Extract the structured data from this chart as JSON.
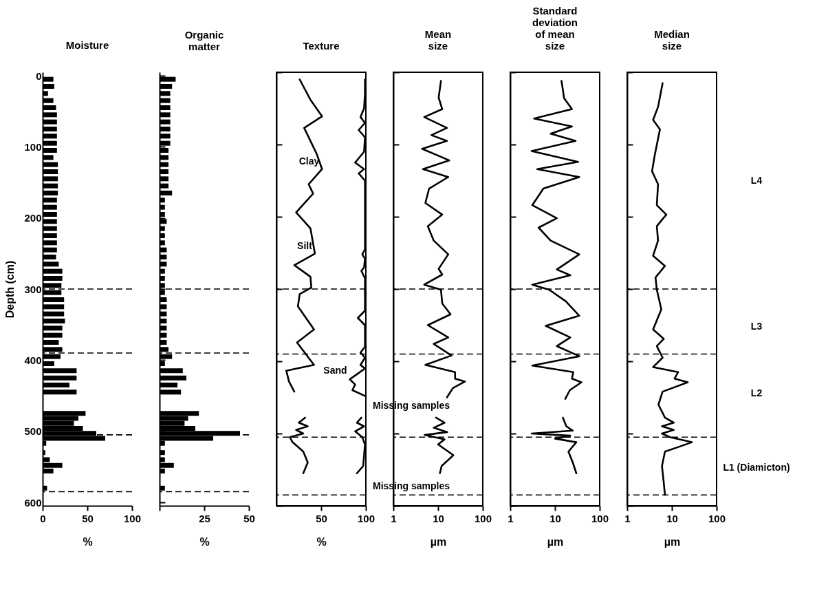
{
  "chart_data": [
    {
      "type": "bar",
      "orientation": "horizontal",
      "title": "Moisture",
      "xlabel": "%",
      "ylabel": "Depth (cm)",
      "xlim": [
        0,
        100
      ],
      "xticks": [
        0,
        50,
        100
      ],
      "ylim": [
        600,
        0
      ],
      "yticks": [
        0,
        100,
        200,
        300,
        400,
        500,
        600
      ],
      "x": [
        5,
        15,
        25,
        35,
        45,
        55,
        65,
        75,
        85,
        95,
        105,
        115,
        125,
        135,
        145,
        155,
        165,
        175,
        185,
        195,
        205,
        215,
        225,
        235,
        245,
        255,
        265,
        275,
        285,
        295,
        305,
        315,
        325,
        335,
        345,
        355,
        365,
        375,
        385,
        395,
        405,
        415,
        425,
        435,
        445,
        475,
        482,
        489,
        496,
        503,
        510,
        517,
        530,
        540,
        548,
        556,
        580
      ],
      "series": [
        {
          "color": "#000000",
          "values": [
            12,
            13,
            6,
            12,
            15,
            16,
            16,
            16,
            16,
            16,
            16,
            12,
            17,
            17,
            17,
            17,
            17,
            16,
            16,
            16,
            16,
            16,
            16,
            16,
            16,
            15,
            18,
            22,
            22,
            21,
            21,
            24,
            24,
            24,
            25,
            22,
            22,
            18,
            22,
            20,
            13,
            38,
            38,
            30,
            38,
            48,
            40,
            35,
            45,
            60,
            70,
            4,
            3,
            8,
            22,
            12,
            5
          ]
        }
      ],
      "ref_lines": [
        {
          "axis": "y",
          "value": 300,
          "line_style": "dashed"
        },
        {
          "axis": "y",
          "value": 390,
          "line_style": "dashed"
        },
        {
          "axis": "y",
          "value": 505,
          "line_style": "dashed"
        },
        {
          "axis": "y",
          "value": 585,
          "line_style": "dashed"
        }
      ]
    },
    {
      "type": "bar",
      "orientation": "horizontal",
      "title": "Organic matter",
      "xlabel": "%",
      "xlim": [
        0,
        50
      ],
      "xticks": [
        {
          "value": 0,
          "label": null
        },
        25,
        50
      ],
      "ylim": [
        600,
        0
      ],
      "yticks": [
        0,
        100,
        200,
        300,
        400,
        500,
        600
      ],
      "tick_labels": "x",
      "x": [
        5,
        15,
        25,
        35,
        45,
        55,
        65,
        75,
        85,
        95,
        105,
        115,
        125,
        135,
        145,
        155,
        165,
        175,
        185,
        195,
        205,
        215,
        225,
        235,
        245,
        255,
        265,
        275,
        285,
        295,
        305,
        315,
        325,
        335,
        345,
        355,
        365,
        375,
        385,
        395,
        405,
        415,
        425,
        435,
        445,
        475,
        482,
        489,
        496,
        503,
        510,
        517,
        530,
        540,
        548,
        556,
        580
      ],
      "series": [
        {
          "color": "#000000",
          "values": [
            9,
            7,
            6,
            6,
            6,
            6,
            6,
            6,
            6,
            6,
            5,
            5,
            5,
            5,
            5,
            5,
            7,
            3,
            3,
            3,
            4,
            3,
            3,
            3,
            4,
            4,
            4,
            3,
            3,
            3,
            3,
            4,
            4,
            4,
            4,
            4,
            4,
            4,
            5,
            7,
            3,
            13,
            15,
            10,
            12,
            22,
            16,
            14,
            20,
            45,
            30,
            3,
            3,
            3,
            8,
            3,
            3
          ]
        }
      ],
      "ref_lines": [
        {
          "axis": "y",
          "value": 300,
          "line_style": "dashed"
        },
        {
          "axis": "y",
          "value": 390,
          "line_style": "dashed"
        },
        {
          "axis": "y",
          "value": 505,
          "line_style": "dashed"
        },
        {
          "axis": "y",
          "value": 585,
          "line_style": "dashed"
        }
      ]
    },
    {
      "type": "line",
      "title": "Texture",
      "xlabel": "%",
      "xlim": [
        0,
        100
      ],
      "xticks": [
        50,
        100
      ],
      "ylim": [
        600,
        0
      ],
      "yticks": [
        0,
        100,
        200,
        300,
        400,
        500,
        600
      ],
      "tick_labels": "x",
      "series": [
        {
          "color": "#000000",
          "x": [
            26,
            38,
            51,
            31,
            45,
            51,
            36,
            41,
            22,
            38,
            43,
            20,
            38,
            39,
            26,
            24,
            42,
            23,
            42,
            11,
            14,
            20
          ],
          "values": [
            10,
            38,
            61,
            77,
            113,
            134,
            155,
            168,
            194,
            216,
            251,
            267,
            283,
            298,
            307,
            324,
            356,
            374,
            405,
            413,
            428,
            442
          ]
        },
        {
          "color": "#000000",
          "x": [
            99,
            99,
            98,
            94,
            99,
            92,
            99,
            98,
            88,
            98,
            92,
            99,
            99,
            99,
            96,
            99,
            98,
            95,
            99,
            99,
            91,
            99,
            99,
            94,
            99,
            94,
            99,
            90,
            82,
            88,
            85,
            99
          ],
          "values": [
            10,
            30,
            50,
            62,
            70,
            80,
            90,
            110,
            125,
            134,
            140,
            150,
            200,
            245,
            252,
            258,
            270,
            275,
            285,
            330,
            340,
            350,
            380,
            388,
            395,
            405,
            410,
            418,
            425,
            432,
            440,
            448
          ]
        },
        {
          "color": "#000000",
          "x": [
            32,
            25,
            35,
            22,
            30,
            15,
            18,
            30,
            35,
            30
          ],
          "values": [
            478,
            485,
            490,
            495,
            500,
            505,
            512,
            525,
            540,
            555
          ]
        },
        {
          "color": "#000000",
          "x": [
            95,
            90,
            98,
            88,
            96,
            99,
            97,
            90
          ],
          "values": [
            478,
            485,
            490,
            497,
            505,
            515,
            545,
            555
          ]
        }
      ],
      "annotations": [
        {
          "text": "Clay",
          "x": 51,
          "y": 135
        },
        {
          "text": "Silt",
          "x": 43,
          "y": 252
        },
        {
          "text": "Sand",
          "x": 82,
          "y": 425
        },
        "Missing samples",
        "Missing samples"
      ],
      "ref_lines": [
        {
          "axis": "y",
          "value": 300,
          "line_style": "dashed"
        },
        {
          "axis": "y",
          "value": 390,
          "line_style": "dashed"
        },
        {
          "axis": "y",
          "value": 505,
          "line_style": "dashed"
        },
        {
          "axis": "y",
          "value": 585,
          "line_style": "dashed"
        }
      ]
    },
    {
      "type": "line",
      "title": "Mean size",
      "xlabel": "µm",
      "log": "x",
      "xlim": [
        1,
        100
      ],
      "xticks": [
        1,
        10,
        100
      ],
      "ylim": [
        600,
        0
      ],
      "yticks": [
        0,
        100,
        200,
        300,
        400,
        500,
        600
      ],
      "tick_labels": "x",
      "series": [
        {
          "color": "#000000",
          "x": [
            11.6,
            10.3,
            12.4,
            4.9,
            15.8,
            7.1,
            15.8,
            4.4,
            17.9,
            4.6,
            16.9,
            6.3,
            5.2,
            12.4,
            5.9,
            8,
            16.9,
            10.3,
            12.4,
            4.9,
            11.6,
            12.4,
            19,
            5.9,
            16.9,
            8,
            20,
            5.2,
            24,
            24,
            40,
            21.5,
            15.8
          ],
          "values": [
            12,
            35,
            51,
            62,
            77,
            87,
            95,
            106,
            122,
            134,
            145,
            161,
            181,
            197,
            213,
            233,
            252,
            272,
            280,
            294,
            301,
            320,
            335,
            350,
            367,
            376,
            392,
            405,
            415,
            424,
            428,
            437,
            450
          ]
        },
        {
          "color": "#000000",
          "x": [
            9,
            14,
            8,
            16,
            5,
            14,
            10,
            22,
            12,
            11
          ],
          "values": [
            478,
            485,
            492,
            498,
            502,
            508,
            515,
            530,
            545,
            555
          ]
        }
      ],
      "ref_lines": [
        {
          "axis": "y",
          "value": 300,
          "line_style": "dashed"
        },
        {
          "axis": "y",
          "value": 390,
          "line_style": "dashed"
        },
        {
          "axis": "y",
          "value": 505,
          "line_style": "dashed"
        },
        {
          "axis": "y",
          "value": 585,
          "line_style": "dashed"
        }
      ]
    },
    {
      "type": "line",
      "title": "Standard deviation of mean size",
      "xlabel": "µm",
      "log": "x",
      "xlim": [
        1,
        100
      ],
      "xticks": [
        1,
        10,
        100
      ],
      "ylim": [
        600,
        0
      ],
      "yticks": [
        0,
        100,
        200,
        300,
        400,
        500,
        600
      ],
      "tick_labels": "x",
      "series": [
        {
          "color": "#000000",
          "x": [
            14,
            16,
            24,
            3.4,
            24,
            8,
            29,
            3,
            33,
            4,
            35,
            5.5,
            3.1,
            11,
            4.3,
            8,
            35,
            11,
            22,
            3.1,
            7.4,
            17.5,
            35,
            6.2,
            22,
            11,
            35,
            3.1,
            25.6,
            24,
            39,
            21.5,
            17
          ],
          "values": [
            12,
            36,
            51,
            64,
            75,
            85,
            95,
            109,
            124,
            134,
            145,
            161,
            184,
            202,
            215,
            233,
            252,
            273,
            281,
            294,
            301,
            317,
            337,
            351,
            367,
            379,
            393,
            406,
            415,
            424,
            429,
            440,
            452
          ]
        },
        {
          "color": "#000000",
          "x": [
            15,
            18,
            25,
            3,
            22,
            10,
            30,
            20,
            25,
            30
          ],
          "values": [
            478,
            490,
            496,
            500,
            503,
            507,
            512,
            525,
            540,
            555
          ]
        }
      ],
      "ref_lines": [
        {
          "axis": "y",
          "value": 300,
          "line_style": "dashed"
        },
        {
          "axis": "y",
          "value": 390,
          "line_style": "dashed"
        },
        {
          "axis": "y",
          "value": 505,
          "line_style": "dashed"
        },
        {
          "axis": "y",
          "value": 585,
          "line_style": "dashed"
        }
      ]
    },
    {
      "type": "line",
      "title": "Median size",
      "xlabel": "µm",
      "log": "x",
      "xlim": [
        1,
        100
      ],
      "xticks": [
        1,
        10,
        100
      ],
      "ylim": [
        600,
        0
      ],
      "yticks": [
        0,
        100,
        200,
        300,
        400,
        500,
        600
      ],
      "tick_labels": "x",
      "series": [
        {
          "color": "#000000",
          "x": [
            6.2,
            4.9,
            3.8,
            5.4,
            4.1,
            3.6,
            4.9,
            4.6,
            7.5,
            4.6,
            4.9,
            3.8,
            7,
            4.3,
            4.6,
            5.8,
            3.8,
            6.6,
            4.6,
            6.2,
            3.8,
            13.8,
            11.5,
            22.7,
            6.2,
            5,
            7,
            11,
            6,
            11,
            6,
            9,
            28,
            15,
            7,
            6,
            6.5,
            7
          ],
          "values": [
            15,
            48,
            66,
            79,
            116,
            137,
            155,
            184,
            197,
            213,
            233,
            254,
            268,
            284,
            301,
            328,
            356,
            369,
            379,
            395,
            408,
            415,
            424,
            429,
            442,
            460,
            478,
            485,
            490,
            495,
            500,
            505,
            512,
            518,
            525,
            545,
            565,
            585
          ]
        }
      ],
      "annotations": [
        "L4",
        "L3",
        "L2",
        "L1 (Diamicton)"
      ],
      "ref_lines": [
        {
          "axis": "y",
          "value": 300,
          "line_style": "dashed"
        },
        {
          "axis": "y",
          "value": 390,
          "line_style": "dashed"
        },
        {
          "axis": "y",
          "value": 505,
          "line_style": "dashed"
        },
        {
          "axis": "y",
          "value": 585,
          "line_style": "dashed"
        }
      ]
    }
  ]
}
